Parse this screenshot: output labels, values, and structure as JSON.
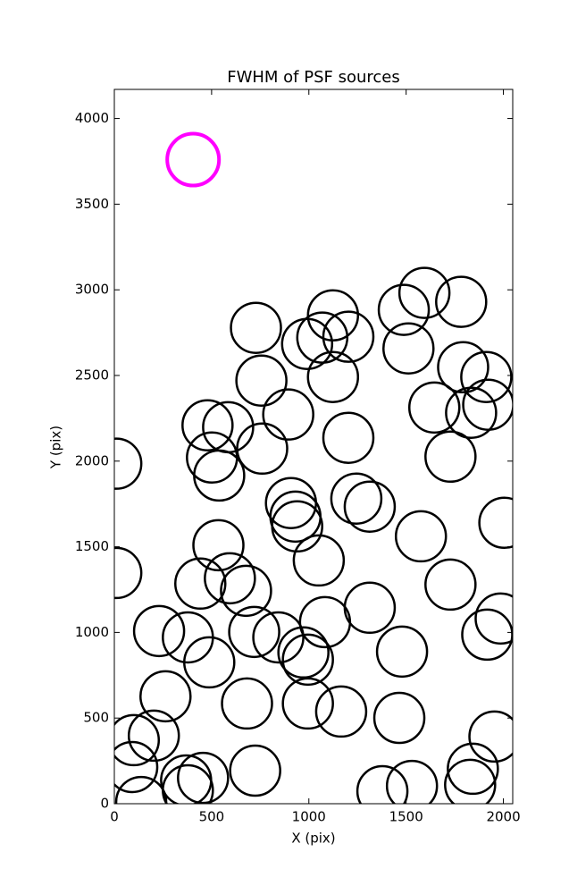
{
  "chart_data": {
    "type": "scatter",
    "title": "FWHM of PSF sources",
    "xlabel": "X (pix)",
    "ylabel": "Y (pix)",
    "xlim": [
      0,
      2048
    ],
    "ylim": [
      0,
      4170
    ],
    "xticks": [
      0,
      500,
      1000,
      1500,
      2000
    ],
    "yticks": [
      0,
      500,
      1000,
      1500,
      2000,
      2500,
      3000,
      3500,
      4000
    ],
    "series": [
      {
        "color": "#000000",
        "x": [
          10,
          10,
          100,
          92,
          138,
          203,
          263,
          230,
          378,
          369,
          378,
          456,
          488,
          442,
          479,
          502,
          539,
          535,
          594,
          585,
          677,
          682,
          728,
          756,
          760,
          719,
          724,
          843,
          894,
          908,
          931,
          940,
          972,
          995,
          995,
          991,
          1051,
          1069,
          1083,
          1124,
          1124,
          1166,
          1203,
          1203,
          1244,
          1313,
          1313,
          1378,
          1465,
          1479,
          1488,
          1512,
          1530,
          1576,
          1594,
          1645,
          1728,
          1728,
          1783,
          1793,
          1834,
          1843,
          1829,
          1912,
          1922,
          1917,
          1954,
          1986,
          2005
        ],
        "values": [
          1985,
          1347,
          371,
          214,
          10,
          397,
          627,
          1008,
          971,
          136,
          78,
          151,
          825,
          1285,
          2209,
          2021,
          1916,
          1509,
          1316,
          2198,
          1243,
          585,
          2778,
          2470,
          2073,
          1003,
          193,
          971,
          2272,
          1755,
          1676,
          1619,
          883,
          841,
          585,
          2684,
          1420,
          2721,
          1060,
          2851,
          2491,
          538,
          2726,
          2136,
          1781,
          1734,
          1144,
          73,
          501,
          888,
          2883,
          2658,
          104,
          1561,
          2982,
          2313,
          2026,
          1279,
          2930,
          2548,
          2282,
          204,
          110,
          2491,
          2329,
          987,
          392,
          1081,
          1640
        ]
      },
      {
        "color": "#ff00ff",
        "x": [
          405
        ],
        "values": [
          3760
        ]
      }
    ]
  }
}
